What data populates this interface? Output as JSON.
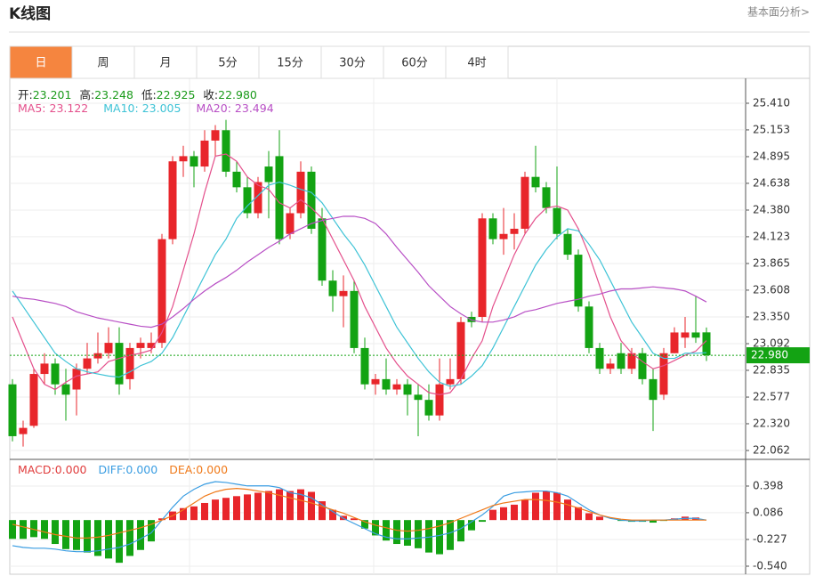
{
  "header": {
    "title": "K线图",
    "link": "基本面分析>"
  },
  "tabs": [
    "日",
    "周",
    "月",
    "5分",
    "15分",
    "30分",
    "60分",
    "4时"
  ],
  "active_tab": 0,
  "chart_data": [
    {
      "type": "candlestick",
      "info": [
        {
          "label": "开:",
          "value": "23.201"
        },
        {
          "label": "高:",
          "value": "23.248"
        },
        {
          "label": "低:",
          "value": "22.925"
        },
        {
          "label": "收:",
          "value": "22.980"
        }
      ],
      "info_color": "#1a9a1a",
      "open": [
        22.7,
        22.22,
        22.3,
        22.8,
        22.9,
        22.7,
        22.65,
        22.85,
        22.95,
        23.0,
        23.1,
        22.75,
        23.05,
        23.05,
        23.1,
        24.1,
        24.85,
        24.9,
        24.8,
        25.05,
        25.15,
        24.75,
        24.6,
        24.35,
        24.8,
        24.9,
        24.15,
        24.35,
        24.75,
        24.3,
        23.7,
        23.55,
        23.6,
        23.05,
        22.7,
        22.75,
        22.65,
        22.7,
        22.6,
        22.55,
        22.4,
        22.7,
        22.75,
        23.35,
        23.35,
        24.3,
        24.1,
        24.15,
        24.2,
        24.7,
        24.6,
        24.4,
        24.15,
        23.95,
        23.45,
        23.05,
        22.85,
        23.0,
        22.85,
        23.0,
        22.75,
        22.6,
        23.0,
        23.15,
        23.2,
        23.201
      ],
      "high": [
        22.75,
        22.35,
        22.85,
        23.0,
        22.95,
        22.85,
        22.9,
        23.1,
        23.2,
        23.25,
        23.25,
        23.1,
        23.15,
        23.2,
        24.15,
        24.9,
        25.0,
        24.95,
        25.15,
        25.2,
        25.25,
        24.85,
        24.7,
        24.7,
        24.95,
        25.15,
        24.4,
        24.85,
        24.8,
        24.4,
        23.8,
        23.75,
        23.7,
        23.15,
        22.8,
        22.95,
        22.75,
        22.75,
        22.7,
        22.7,
        22.95,
        22.95,
        23.35,
        23.4,
        24.35,
        24.35,
        24.4,
        24.35,
        24.75,
        25.0,
        24.65,
        24.8,
        24.2,
        24.0,
        23.5,
        23.1,
        22.95,
        23.1,
        23.05,
        23.05,
        22.85,
        23.05,
        23.25,
        23.35,
        23.55,
        23.248
      ],
      "low": [
        22.15,
        22.1,
        22.28,
        22.7,
        22.6,
        22.35,
        22.4,
        22.8,
        22.9,
        22.95,
        22.6,
        22.65,
        22.95,
        23.0,
        23.05,
        24.05,
        24.7,
        24.6,
        24.75,
        24.9,
        24.7,
        24.55,
        24.3,
        24.3,
        24.3,
        24.05,
        24.1,
        24.3,
        24.15,
        23.65,
        23.4,
        23.25,
        23.0,
        22.65,
        22.6,
        22.6,
        22.6,
        22.4,
        22.2,
        22.35,
        22.35,
        22.65,
        22.7,
        23.25,
        23.3,
        24.05,
        23.95,
        24.0,
        24.15,
        24.55,
        24.35,
        24.1,
        23.9,
        23.4,
        23.0,
        22.8,
        22.8,
        22.8,
        22.8,
        22.7,
        22.25,
        22.55,
        23.0,
        23.05,
        23.1,
        22.925
      ],
      "close": [
        22.2,
        22.28,
        22.8,
        22.9,
        22.7,
        22.6,
        22.85,
        22.95,
        23.0,
        23.1,
        22.7,
        23.05,
        23.1,
        23.1,
        24.1,
        24.85,
        24.9,
        24.8,
        25.05,
        25.15,
        24.75,
        24.6,
        24.35,
        24.65,
        24.65,
        24.1,
        24.35,
        24.75,
        24.2,
        23.7,
        23.55,
        23.6,
        23.05,
        22.7,
        22.75,
        22.65,
        22.7,
        22.6,
        22.55,
        22.4,
        22.7,
        22.75,
        23.3,
        23.3,
        24.3,
        24.1,
        24.15,
        24.2,
        24.7,
        24.6,
        24.4,
        24.15,
        23.95,
        23.45,
        23.05,
        22.85,
        22.9,
        22.85,
        23.0,
        22.75,
        22.55,
        23.0,
        23.2,
        23.2,
        23.15,
        22.98
      ],
      "up_color": "#e8262b",
      "down_color": "#13a313",
      "series": [
        {
          "name": "MA5:",
          "last": "23.122",
          "color": "#e4508c",
          "values": [
            23.35,
            23.1,
            22.85,
            22.7,
            22.65,
            22.72,
            22.78,
            22.8,
            22.82,
            22.92,
            22.95,
            22.98,
            23.0,
            23.03,
            23.2,
            23.45,
            23.8,
            24.15,
            24.55,
            24.9,
            24.92,
            24.85,
            24.7,
            24.62,
            24.58,
            24.45,
            24.4,
            24.48,
            24.4,
            24.3,
            24.1,
            23.9,
            23.7,
            23.45,
            23.25,
            23.05,
            22.9,
            22.78,
            22.7,
            22.62,
            22.6,
            22.62,
            22.75,
            22.95,
            23.12,
            23.45,
            23.7,
            23.95,
            24.15,
            24.3,
            24.4,
            24.42,
            24.38,
            24.2,
            23.95,
            23.65,
            23.35,
            23.12,
            23.0,
            22.92,
            22.85,
            22.88,
            22.93,
            22.98,
            23.02,
            23.122
          ]
        },
        {
          "name": "MA10:",
          "last": "23.005",
          "color": "#3ec3d6",
          "values": [
            23.6,
            23.45,
            23.3,
            23.15,
            23.0,
            22.92,
            22.85,
            22.82,
            22.8,
            22.78,
            22.77,
            22.82,
            22.88,
            22.92,
            23.0,
            23.15,
            23.35,
            23.55,
            23.75,
            23.95,
            24.1,
            24.3,
            24.42,
            24.52,
            24.62,
            24.65,
            24.62,
            24.58,
            24.55,
            24.45,
            24.3,
            24.15,
            24.02,
            23.85,
            23.65,
            23.45,
            23.25,
            23.1,
            22.95,
            22.82,
            22.72,
            22.68,
            22.7,
            22.78,
            22.88,
            23.05,
            23.25,
            23.45,
            23.65,
            23.85,
            24.0,
            24.12,
            24.2,
            24.18,
            24.05,
            23.9,
            23.7,
            23.5,
            23.3,
            23.15,
            23.0,
            22.95,
            22.95,
            23.0,
            23.0,
            23.005
          ]
        },
        {
          "name": "MA20:",
          "last": "23.494",
          "color": "#b84fc5",
          "values": [
            23.55,
            23.53,
            23.52,
            23.5,
            23.48,
            23.45,
            23.4,
            23.37,
            23.34,
            23.32,
            23.3,
            23.28,
            23.26,
            23.25,
            23.28,
            23.35,
            23.43,
            23.52,
            23.6,
            23.67,
            23.73,
            23.8,
            23.88,
            23.95,
            24.02,
            24.08,
            24.15,
            24.2,
            24.25,
            24.28,
            24.3,
            24.32,
            24.32,
            24.3,
            24.25,
            24.15,
            24.02,
            23.9,
            23.78,
            23.65,
            23.55,
            23.45,
            23.38,
            23.32,
            23.3,
            23.3,
            23.32,
            23.35,
            23.4,
            23.42,
            23.45,
            23.48,
            23.5,
            23.52,
            23.55,
            23.57,
            23.6,
            23.62,
            23.62,
            23.63,
            23.64,
            23.63,
            23.62,
            23.6,
            23.55,
            23.494
          ]
        }
      ],
      "ylim": [
        21.985,
        25.633
      ],
      "yticks": [
        {
          "value": 25.41,
          "label": "25.410"
        },
        25.153,
        24.895,
        24.638,
        {
          "value": 24.38,
          "label": "24.380"
        },
        24.123,
        23.865,
        23.608,
        {
          "value": 23.35,
          "label": "23.350"
        },
        23.092,
        22.835,
        22.577,
        {
          "value": 22.32,
          "label": "22.320"
        },
        22.062
      ],
      "grid": true,
      "last_price": {
        "value": 22.98,
        "label": "22.980"
      },
      "last_price_color": "#13a313"
    },
    {
      "type": "macd",
      "bars": {
        "name": "MACD:",
        "last": "0.000",
        "color": "#e03c3c",
        "values": [
          -0.22,
          -0.22,
          -0.2,
          -0.22,
          -0.28,
          -0.34,
          -0.35,
          -0.38,
          -0.42,
          -0.45,
          -0.5,
          -0.42,
          -0.35,
          -0.25,
          0.02,
          0.1,
          0.14,
          0.16,
          0.2,
          0.24,
          0.26,
          0.28,
          0.3,
          0.32,
          0.34,
          0.36,
          0.34,
          0.36,
          0.33,
          0.22,
          0.12,
          0.05,
          0.02,
          -0.1,
          -0.18,
          -0.24,
          -0.28,
          -0.3,
          -0.33,
          -0.38,
          -0.4,
          -0.35,
          -0.25,
          -0.12,
          -0.02,
          0.12,
          0.15,
          0.18,
          0.24,
          0.32,
          0.34,
          0.32,
          0.24,
          0.15,
          0.08,
          0.04,
          0.0,
          -0.01,
          -0.02,
          -0.02,
          -0.03,
          -0.01,
          0.02,
          0.04,
          0.03,
          0.0
        ]
      },
      "pos_color": "#e8262b",
      "neg_color": "#13a313",
      "series": [
        {
          "name": "DIFF:",
          "last": "0.000",
          "color": "#3a9de2",
          "values": [
            -0.3,
            -0.32,
            -0.33,
            -0.33,
            -0.34,
            -0.36,
            -0.37,
            -0.37,
            -0.36,
            -0.34,
            -0.32,
            -0.28,
            -0.22,
            -0.15,
            0.0,
            0.15,
            0.28,
            0.36,
            0.42,
            0.45,
            0.44,
            0.42,
            0.4,
            0.4,
            0.4,
            0.38,
            0.32,
            0.3,
            0.26,
            0.18,
            0.1,
            0.02,
            -0.04,
            -0.1,
            -0.16,
            -0.2,
            -0.22,
            -0.22,
            -0.21,
            -0.2,
            -0.18,
            -0.15,
            -0.1,
            -0.02,
            0.06,
            0.16,
            0.28,
            0.32,
            0.33,
            0.34,
            0.34,
            0.32,
            0.28,
            0.2,
            0.12,
            0.06,
            0.02,
            0.0,
            -0.01,
            -0.01,
            0.0,
            0.0,
            0.01,
            0.02,
            0.02,
            0.0
          ]
        },
        {
          "name": "DEA:",
          "last": "0.000",
          "color": "#f07a1a",
          "values": [
            -0.05,
            -0.08,
            -0.11,
            -0.14,
            -0.17,
            -0.19,
            -0.21,
            -0.21,
            -0.2,
            -0.18,
            -0.15,
            -0.12,
            -0.09,
            -0.05,
            0.0,
            0.05,
            0.12,
            0.2,
            0.28,
            0.33,
            0.36,
            0.37,
            0.36,
            0.34,
            0.32,
            0.29,
            0.26,
            0.23,
            0.2,
            0.16,
            0.12,
            0.08,
            0.03,
            -0.02,
            -0.06,
            -0.09,
            -0.12,
            -0.13,
            -0.12,
            -0.1,
            -0.07,
            -0.03,
            0.02,
            0.07,
            0.12,
            0.17,
            0.2,
            0.22,
            0.24,
            0.24,
            0.23,
            0.21,
            0.18,
            0.14,
            0.1,
            0.06,
            0.03,
            0.01,
            0.0,
            0.0,
            0.0,
            0.0,
            0.0,
            0.0,
            0.0,
            0.0
          ]
        }
      ],
      "ylim": [
        -0.634,
        0.7
      ],
      "yticks": [
        0.398,
        0.086,
        -0.227,
        {
          "value": -0.54,
          "label": "-0.540"
        }
      ],
      "grid": true
    }
  ]
}
